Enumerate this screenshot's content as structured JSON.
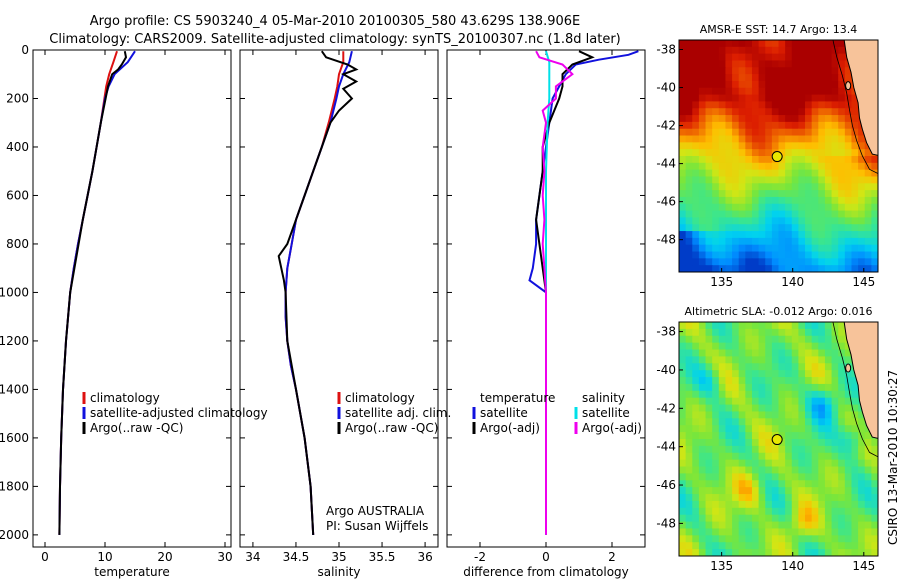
{
  "title": {
    "line1": "Argo profile: CS 5903240_4 05-Mar-2010 20100305_580 43.629S 138.906E",
    "line2": "Climatology: CARS2009. Satellite-adjusted climatology: synTS_20100307.nc (1.8d later)"
  },
  "side_label": "CSIRO 13-Mar-2010 10:30:27",
  "colors": {
    "climatology": "#dd1111",
    "satellite": "#1111dd",
    "argo": "#000000",
    "sat_salinity": "#00e0e8",
    "argo_salinity": "#ee00ee"
  },
  "chart_data": [
    {
      "type": "line",
      "panel": "temperature",
      "xlabel": "temperature",
      "xlim": [
        -2,
        31
      ],
      "ylim": [
        2050,
        0
      ],
      "xticks": [
        "0",
        "10",
        "20",
        "30"
      ],
      "xtick_values": [
        0,
        10,
        20,
        30
      ],
      "yticks": [
        "0",
        "200",
        "400",
        "600",
        "800",
        "1000",
        "1200",
        "1400",
        "1600",
        "1800",
        "2000"
      ],
      "ytick_values": [
        0,
        200,
        400,
        600,
        800,
        1000,
        1200,
        1400,
        1600,
        1800,
        2000
      ],
      "legend": [
        "climatology",
        "satellite-adjusted climatology",
        "Argo(..raw -QC)"
      ],
      "series": [
        {
          "name": "climatology",
          "color": "#dd1111",
          "depth": [
            5,
            50,
            100,
            150,
            200,
            300,
            400,
            500,
            600,
            700,
            800,
            900,
            1000,
            1200,
            1400,
            1600,
            1800,
            2000
          ],
          "values": [
            12.0,
            11.4,
            10.7,
            10.2,
            9.9,
            9.3,
            8.6,
            7.9,
            7.1,
            6.3,
            5.5,
            4.8,
            4.2,
            3.5,
            3.0,
            2.7,
            2.5,
            2.4
          ]
        },
        {
          "name": "satellite-adjusted climatology",
          "color": "#1111dd",
          "depth": [
            5,
            50,
            100,
            150,
            200,
            300,
            400,
            500,
            600,
            700,
            800,
            900,
            1000,
            1200,
            1400,
            1600,
            1800,
            2000
          ],
          "values": [
            15.0,
            13.8,
            11.6,
            10.6,
            10.0,
            9.3,
            8.6,
            7.9,
            7.1,
            6.3,
            5.5,
            4.8,
            4.2,
            3.5,
            3.0,
            2.7,
            2.5,
            2.4
          ]
        },
        {
          "name": "Argo(..raw -QC)",
          "color": "#000000",
          "depth": [
            5,
            30,
            60,
            80,
            100,
            150,
            200,
            250,
            300,
            400,
            500,
            600,
            700,
            800,
            900,
            1000,
            1200,
            1400,
            1600,
            1800,
            2000
          ],
          "values": [
            13.3,
            13.5,
            12.8,
            12.2,
            11.2,
            10.5,
            10.1,
            9.7,
            9.3,
            8.6,
            7.9,
            7.1,
            6.3,
            5.6,
            4.9,
            4.2,
            3.5,
            3.0,
            2.7,
            2.5,
            2.4
          ]
        }
      ]
    },
    {
      "type": "line",
      "panel": "salinity",
      "xlabel": "salinity",
      "xlim": [
        33.85,
        36.15
      ],
      "ylim": [
        2050,
        0
      ],
      "xticks": [
        "34",
        "34.5",
        "35",
        "35.5",
        "36"
      ],
      "xtick_values": [
        34,
        34.5,
        35,
        35.5,
        36
      ],
      "legend": [
        "climatology",
        "satellite adj. clim.",
        "Argo(..raw -QC)"
      ],
      "annotation": [
        "Argo AUSTRALIA",
        "PI: Susan Wijffels"
      ],
      "series": [
        {
          "name": "climatology",
          "color": "#dd1111",
          "depth": [
            5,
            50,
            100,
            150,
            200,
            300,
            400,
            500,
            600,
            700,
            800,
            900,
            1000,
            1100,
            1200,
            1300,
            1400,
            1600,
            1800,
            2000
          ],
          "values": [
            35.05,
            35.05,
            35.0,
            34.98,
            34.95,
            34.88,
            34.8,
            34.7,
            34.6,
            34.5,
            34.45,
            34.4,
            34.38,
            34.38,
            34.4,
            34.44,
            34.5,
            34.6,
            34.67,
            34.7
          ]
        },
        {
          "name": "satellite adj. clim.",
          "color": "#1111dd",
          "depth": [
            5,
            50,
            100,
            150,
            200,
            300,
            400,
            500,
            600,
            700,
            800,
            900,
            1000,
            1100,
            1200,
            1300,
            1400,
            1600,
            1800,
            2000
          ],
          "values": [
            35.15,
            35.12,
            35.05,
            35.0,
            34.97,
            34.9,
            34.8,
            34.7,
            34.6,
            34.5,
            34.45,
            34.4,
            34.38,
            34.38,
            34.4,
            34.44,
            34.5,
            34.6,
            34.67,
            34.7
          ]
        },
        {
          "name": "Argo(..raw -QC)",
          "color": "#000000",
          "depth": [
            5,
            30,
            60,
            80,
            100,
            130,
            160,
            200,
            250,
            300,
            400,
            500,
            600,
            700,
            800,
            850,
            900,
            950,
            1000,
            1200,
            1400,
            1600,
            1800,
            2000
          ],
          "values": [
            34.8,
            34.85,
            35.1,
            35.2,
            35.05,
            35.2,
            35.05,
            35.15,
            35.0,
            34.9,
            34.8,
            34.7,
            34.6,
            34.5,
            34.4,
            34.3,
            34.33,
            34.36,
            34.38,
            34.4,
            34.5,
            34.6,
            34.67,
            34.7
          ]
        }
      ]
    },
    {
      "type": "line",
      "panel": "difference",
      "xlabel": "difference from climatology",
      "xlim": [
        -3,
        3
      ],
      "ylim": [
        2050,
        0
      ],
      "xticks": [
        "-2",
        "0",
        "2"
      ],
      "xtick_values": [
        -2,
        0,
        2
      ],
      "legend_temperature": {
        "title": "temperature",
        "items": [
          "satellite",
          "Argo(-adj)"
        ]
      },
      "legend_salinity": {
        "title": "salinity",
        "items": [
          "satellite",
          "Argo(-adj)"
        ]
      },
      "series": [
        {
          "name": "temperature satellite",
          "color": "#1111dd",
          "depth": [
            5,
            20,
            40,
            60,
            100,
            150,
            200,
            300,
            400,
            500,
            600,
            700,
            800,
            900,
            950,
            1000,
            1200,
            1400,
            1600,
            1800,
            2000
          ],
          "values": [
            2.8,
            2.5,
            1.6,
            0.9,
            0.6,
            0.4,
            0.2,
            0.1,
            0.0,
            -0.1,
            -0.2,
            -0.3,
            -0.3,
            -0.4,
            -0.5,
            0.0,
            0.0,
            0.0,
            0.0,
            0.0,
            0.0
          ]
        },
        {
          "name": "temperature Argo(-adj)",
          "color": "#000000",
          "depth": [
            5,
            30,
            60,
            100,
            150,
            200,
            300,
            400,
            500,
            600,
            700,
            800,
            900,
            1000,
            1200,
            1400,
            1600,
            1800,
            2000
          ],
          "values": [
            1.0,
            1.4,
            0.8,
            0.5,
            0.5,
            0.4,
            0.1,
            -0.1,
            -0.1,
            -0.2,
            -0.3,
            -0.2,
            -0.1,
            0.0,
            0.0,
            0.0,
            0.0,
            0.0,
            0.0
          ]
        },
        {
          "name": "salinity satellite",
          "color": "#00e0e8",
          "depth": [
            5,
            50,
            100,
            200,
            300,
            500,
            800,
            1000,
            1400,
            1800,
            2000
          ],
          "values": [
            0.0,
            0.1,
            0.1,
            0.1,
            0.05,
            0.0,
            0.0,
            0.0,
            0.0,
            0.0,
            0.0
          ]
        },
        {
          "name": "salinity Argo(-adj)",
          "color": "#ee00ee",
          "depth": [
            5,
            30,
            60,
            100,
            150,
            200,
            250,
            300,
            400,
            500,
            600,
            700,
            800,
            900,
            1000,
            1200,
            1400,
            1600,
            1800,
            2000
          ],
          "values": [
            -0.3,
            -0.2,
            0.5,
            0.8,
            0.3,
            0.3,
            -0.1,
            0.0,
            -0.1,
            -0.05,
            -0.1,
            -0.05,
            -0.1,
            -0.05,
            0.0,
            0.0,
            0.0,
            0.0,
            0.0,
            0.0
          ]
        }
      ]
    },
    {
      "type": "heatmap",
      "panel": "sst_map",
      "title": "AMSR-E SST: 14.7  Argo: 13.4",
      "xlim": [
        132,
        146
      ],
      "ylim": [
        -49.7,
        -37.5
      ],
      "xticks": [
        "135",
        "140",
        "145"
      ],
      "xtick_values": [
        135,
        140,
        145
      ],
      "yticks": [
        "-38",
        "-40",
        "-42",
        "-44",
        "-46",
        "-48"
      ],
      "ytick_values": [
        -38,
        -40,
        -42,
        -44,
        -46,
        -48
      ],
      "argo_position": {
        "lon": 138.906,
        "lat": -43.629
      }
    },
    {
      "type": "heatmap",
      "panel": "sla_map",
      "title": "Altimetric SLA: -0.012  Argo: 0.016",
      "xlim": [
        132,
        146
      ],
      "ylim": [
        -49.7,
        -37.5
      ],
      "xticks": [
        "135",
        "140",
        "145"
      ],
      "xtick_values": [
        135,
        140,
        145
      ],
      "yticks": [
        "-38",
        "-40",
        "-42",
        "-44",
        "-46",
        "-48"
      ],
      "ytick_values": [
        -38,
        -40,
        -42,
        -44,
        -46,
        -48
      ],
      "argo_position": {
        "lon": 138.906,
        "lat": -43.629
      }
    }
  ]
}
